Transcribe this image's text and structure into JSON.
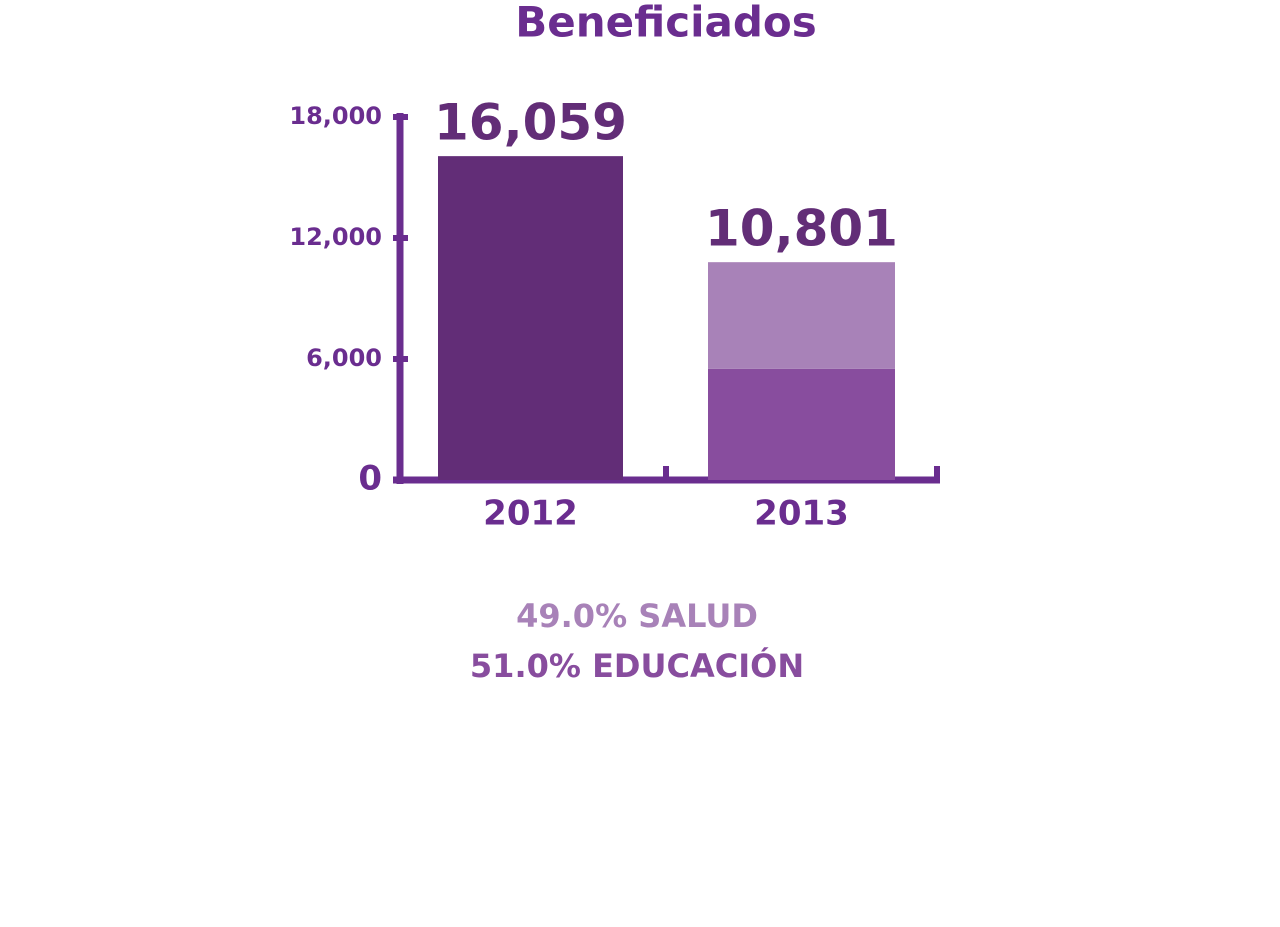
{
  "chart_data": {
    "type": "bar",
    "title": "Beneficiados",
    "categories": [
      "2012",
      "2013"
    ],
    "totals": [
      16059,
      10801
    ],
    "total_labels": [
      "16,059",
      "10,801"
    ],
    "total_color": "#622d77",
    "series": [
      {
        "name": "EDUCACIÓN",
        "color": "#884d9e",
        "values": [
          null,
          5509
        ],
        "share": 51.0,
        "share_label": "51.0%"
      },
      {
        "name": "SALUD",
        "color": "#a882b8",
        "values": [
          null,
          5292
        ],
        "share": 49.0,
        "share_label": "49.0%"
      }
    ],
    "ylim": [
      0,
      18000
    ],
    "yticks": [
      0,
      {
        "value": 6000,
        "label": "6,000"
      },
      {
        "value": 12000,
        "label": "12,000"
      },
      {
        "value": 18000,
        "label": "18,000"
      }
    ],
    "axis_color": "#6a2d8f"
  }
}
